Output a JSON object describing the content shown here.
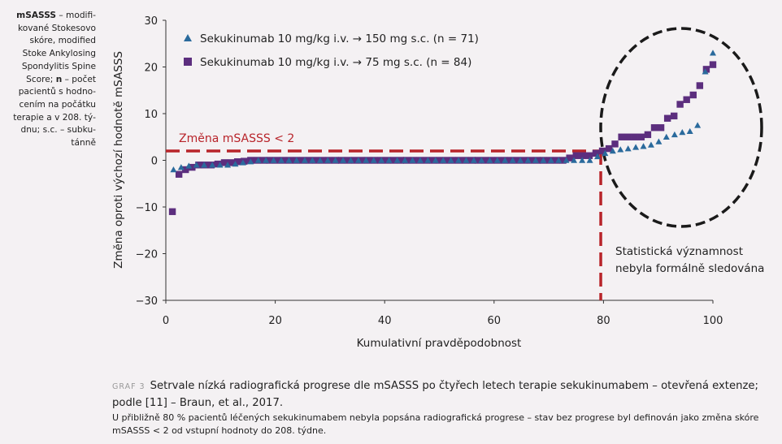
{
  "sidenote": {
    "term1": "mSASSS",
    "text1": " – modifi­kované Stokesovo skóre, modified Stoke Ankylosing Spondylitis Spine Score; ",
    "term2": "n",
    "text2": " – počet pacientů s hodno­cením na počátku terapie a v 208. tý­dnu; s.c. – subku­tánně"
  },
  "chart_data": {
    "type": "scatter",
    "xlabel": "Kumulativní pravděpodobnost",
    "ylabel": "Změna oproti výchozí hodnotě mSASSS",
    "xlim": [
      0,
      100
    ],
    "ylim": [
      -30,
      30
    ],
    "xticks": [
      0,
      20,
      40,
      60,
      80,
      100
    ],
    "yticks": [
      -30,
      -20,
      -10,
      0,
      10,
      20,
      30
    ],
    "legend_position": "top-left",
    "series": [
      {
        "name": "Sekukinumab 10 mg/kg i.v. → 150 mg s.c. (n = 71)",
        "marker": "triangle",
        "color": "#2a6a9c",
        "x": [
          1.4,
          2.8,
          4.2,
          5.6,
          7.0,
          8.5,
          9.9,
          11.3,
          12.7,
          14.1,
          15.5,
          16.9,
          18.3,
          19.7,
          21.1,
          22.5,
          23.9,
          25.4,
          26.8,
          28.2,
          29.6,
          31.0,
          32.4,
          33.8,
          35.2,
          36.6,
          38.0,
          39.4,
          40.8,
          42.3,
          43.7,
          45.1,
          46.5,
          47.9,
          49.3,
          50.7,
          52.1,
          53.5,
          54.9,
          56.3,
          57.7,
          59.2,
          60.6,
          62.0,
          63.4,
          64.8,
          66.2,
          67.6,
          69.0,
          70.4,
          71.8,
          73.2,
          74.6,
          76.1,
          77.5,
          78.9,
          80.3,
          81.7,
          83.1,
          84.5,
          85.9,
          87.3,
          88.7,
          90.1,
          91.5,
          93.0,
          94.4,
          95.8,
          97.2,
          98.6,
          100.0
        ],
        "y": [
          -2,
          -1.5,
          -1.2,
          -1,
          -1,
          -1,
          -1,
          -1,
          -0.8,
          -0.5,
          -0.3,
          0,
          0,
          0,
          0,
          0,
          0,
          0,
          0,
          0,
          0,
          0,
          0,
          0,
          0,
          0,
          0,
          0,
          0,
          0,
          0,
          0,
          0,
          0,
          0,
          0,
          0,
          0,
          0,
          0,
          0,
          0,
          0,
          0,
          0,
          0,
          0,
          0,
          0,
          0,
          0,
          0,
          0,
          0,
          0,
          0.8,
          1.5,
          2,
          2.3,
          2.5,
          2.8,
          3,
          3.3,
          4,
          5,
          5.5,
          6,
          6.2,
          7.5,
          19,
          23
        ]
      },
      {
        "name": "Sekukinumab 10 mg/kg i.v. → 75 mg s.c. (n = 84)",
        "marker": "square",
        "color": "#5c2e7e",
        "x": [
          1.2,
          2.4,
          3.6,
          4.8,
          6.0,
          7.1,
          8.3,
          9.5,
          10.7,
          11.9,
          13.1,
          14.3,
          15.5,
          16.7,
          17.9,
          19.0,
          20.2,
          21.4,
          22.6,
          23.8,
          25.0,
          26.2,
          27.4,
          28.6,
          29.8,
          31.0,
          32.1,
          33.3,
          34.5,
          35.7,
          36.9,
          38.1,
          39.3,
          40.5,
          41.7,
          42.9,
          44.0,
          45.2,
          46.4,
          47.6,
          48.8,
          50.0,
          51.2,
          52.4,
          53.6,
          54.8,
          56.0,
          57.1,
          58.3,
          59.5,
          60.7,
          61.9,
          63.1,
          64.3,
          65.5,
          66.7,
          67.9,
          69.0,
          70.2,
          71.4,
          72.6,
          73.8,
          75.0,
          76.2,
          77.4,
          78.6,
          79.8,
          81.0,
          82.1,
          83.3,
          84.5,
          85.7,
          86.9,
          88.1,
          89.3,
          90.5,
          91.7,
          92.9,
          94.0,
          95.2,
          96.4,
          97.6,
          98.8,
          100.0
        ],
        "y": [
          -11,
          -3,
          -2,
          -1.5,
          -1,
          -1,
          -1,
          -0.8,
          -0.5,
          -0.5,
          -0.3,
          -0.2,
          0,
          0,
          0,
          0,
          0,
          0,
          0,
          0,
          0,
          0,
          0,
          0,
          0,
          0,
          0,
          0,
          0,
          0,
          0,
          0,
          0,
          0,
          0,
          0,
          0,
          0,
          0,
          0,
          0,
          0,
          0,
          0,
          0,
          0,
          0,
          0,
          0,
          0,
          0,
          0,
          0,
          0,
          0,
          0,
          0,
          0,
          0,
          0,
          0,
          0.5,
          1,
          1,
          1,
          1.5,
          2,
          2.5,
          3.5,
          5,
          5,
          5,
          5,
          5.5,
          7,
          7,
          9,
          9.5,
          12,
          13,
          14,
          16,
          19.5,
          20.5
        ]
      }
    ],
    "threshold_label": "Změna mSASSS < 2",
    "threshold_y": 2,
    "threshold_x": 79.5,
    "annotation": "Statistická významnost nebyla formálně sledována",
    "colors": {
      "threshold": "#b8242a",
      "ellipse": "#1a1a1a",
      "axis": "#333333"
    }
  },
  "caption": {
    "label": "GRAF 3",
    "text": "Setrvale nízká radiografická progrese dle mSASSS po čtyřech letech terapie sekukinumabem – otevřená extenze; podle [11] – Braun, et al., 2017."
  },
  "note": "U přibližně 80 % pacientů léčených sekukinumabem nebyla popsána radiografická progrese – stav bez progrese byl definován jako změna skóre mSASSS < 2 od vstupní hodnoty do 208. týdne."
}
